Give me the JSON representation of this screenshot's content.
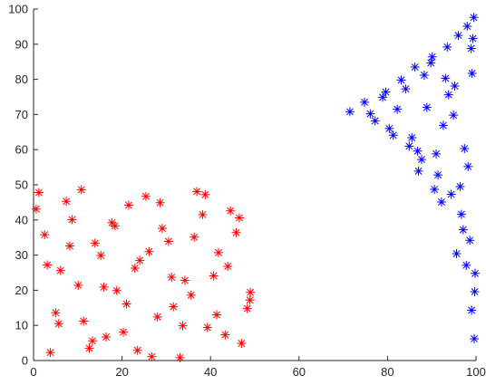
{
  "chart_data": {
    "type": "scatter",
    "title": "",
    "xlabel": "",
    "ylabel": "",
    "xlim": [
      0,
      100
    ],
    "ylim": [
      0,
      100
    ],
    "x_ticks": [
      0,
      20,
      40,
      60,
      80,
      100
    ],
    "y_ticks": [
      0,
      10,
      20,
      30,
      40,
      50,
      60,
      70,
      80,
      90,
      100
    ],
    "x_tick_labels": [
      "0",
      "20",
      "40",
      "60",
      "80",
      "100"
    ],
    "y_tick_labels": [
      "0",
      "10",
      "20",
      "30",
      "40",
      "50",
      "60",
      "70",
      "80",
      "90",
      "100"
    ],
    "grid": false,
    "legend": "none",
    "marker": "asterisk",
    "series": [
      {
        "color": "#ff0000",
        "region": "uniform square 0 <= x <= 50, 0 <= y <= 50",
        "x": [
          1.2,
          3.8,
          6.1,
          8.7,
          11.3,
          13.9,
          16.4,
          18.8,
          21.5,
          24.0,
          26.7,
          29.1,
          31.6,
          34.2,
          36.9,
          39.3,
          41.8,
          44.5,
          47.0,
          48.9,
          2.5,
          5.0,
          7.4,
          10.1,
          12.6,
          15.2,
          17.7,
          20.3,
          22.9,
          25.4,
          28.0,
          30.5,
          33.1,
          35.6,
          38.2,
          40.7,
          43.3,
          45.8,
          48.3,
          0.6,
          3.1,
          5.7,
          8.2,
          10.8,
          13.3,
          15.9,
          18.4,
          21.0,
          23.5,
          26.1,
          28.6,
          31.2,
          33.7,
          36.3,
          38.8,
          41.4,
          43.9,
          46.5,
          49.0
        ],
        "y": [
          47.8,
          2.3,
          25.6,
          40.1,
          11.2,
          33.4,
          6.7,
          19.9,
          44.2,
          28.5,
          1.1,
          37.6,
          15.3,
          22.8,
          48.1,
          9.4,
          30.7,
          42.6,
          4.9,
          17.2,
          35.8,
          13.6,
          45.3,
          21.4,
          3.5,
          29.9,
          39.2,
          8.1,
          26.3,
          46.7,
          12.4,
          33.9,
          0.8,
          18.6,
          41.5,
          24.1,
          7.3,
          36.4,
          14.8,
          43.1,
          27.2,
          10.5,
          32.6,
          48.6,
          5.6,
          20.9,
          38.3,
          16.1,
          2.9,
          31.0,
          44.9,
          23.7,
          9.9,
          35.1,
          47.2,
          13.0,
          26.8,
          40.6,
          19.4
        ]
      },
      {
        "color": "#0000ff",
        "region": "triangle with vertices (71, 71), (100, 99), (100, 5)",
        "x": [
          71.5,
          74.8,
          77.2,
          79.6,
          81.3,
          83.1,
          84.9,
          86.2,
          87.7,
          88.9,
          90.1,
          91.4,
          92.6,
          93.5,
          94.4,
          95.2,
          96.0,
          96.7,
          97.4,
          98.0,
          98.6,
          99.1,
          99.5,
          99.8,
          76.1,
          78.9,
          82.2,
          85.5,
          88.3,
          91.0,
          93.8,
          96.4,
          98.9,
          80.4,
          84.1,
          87.0,
          89.8,
          92.2,
          94.9,
          97.1,
          99.3,
          86.8,
          90.6,
          93.1,
          95.6,
          98.2,
          99.7,
          97.8,
          99.0,
          99.6
        ],
        "y": [
          70.8,
          73.5,
          68.2,
          76.4,
          64.1,
          79.8,
          61.0,
          83.5,
          57.2,
          72.0,
          86.4,
          52.8,
          66.9,
          89.2,
          47.3,
          78.1,
          92.5,
          41.6,
          60.3,
          95.1,
          34.2,
          81.7,
          97.6,
          24.8,
          70.2,
          74.9,
          71.5,
          63.4,
          81.2,
          58.8,
          75.6,
          49.5,
          88.8,
          66.0,
          77.3,
          53.9,
          84.7,
          45.1,
          69.8,
          37.2,
          91.6,
          59.6,
          48.7,
          80.3,
          30.4,
          55.2,
          19.6,
          27.1,
          14.3,
          6.2
        ]
      }
    ]
  }
}
